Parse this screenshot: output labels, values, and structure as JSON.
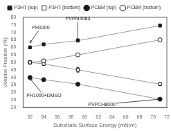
{
  "chart_data": {
    "type": "line",
    "xlabel": "Substrate Surface Energy (mN/m)",
    "ylabel": "Volume Fraction (%)",
    "xlim": [
      51,
      72
    ],
    "ylim": [
      20,
      80
    ],
    "xticks": [
      52,
      54,
      56,
      58,
      60,
      62,
      64,
      66,
      68,
      70,
      72
    ],
    "yticks": [
      20,
      25,
      30,
      35,
      40,
      45,
      50,
      55,
      60,
      65,
      70,
      75,
      80
    ],
    "grid": false,
    "legend": "top",
    "series": [
      {
        "name": "P3HT (top)",
        "color": "#1a1a1a",
        "marker": "square",
        "x": [
          52.0,
          54.0,
          59.0,
          71.0
        ],
        "values": [
          60.0,
          62.0,
          64.5,
          74.5
        ],
        "errors": [
          0.5,
          0.5,
          0.5,
          0.8
        ]
      },
      {
        "name": "P3HT (bottom)",
        "color": "#1a1a1a",
        "marker": "square-open",
        "x": [
          52.0,
          54.0,
          59.0,
          71.0
        ],
        "values": [
          50.0,
          49.0,
          45.0,
          35.5
        ],
        "errors": [
          1.0,
          1.0,
          1.5,
          1.0
        ]
      },
      {
        "name": "PCBM (top)",
        "color": "#1a1a1a",
        "marker": "circle",
        "x": [
          52.0,
          54.0,
          59.0,
          71.0
        ],
        "values": [
          40.0,
          38.5,
          35.5,
          25.5
        ],
        "errors": [
          0.8,
          0.5,
          0.5,
          0.5
        ]
      },
      {
        "name": "PCBM (bottom)",
        "color": "#1a1a1a",
        "marker": "circle-open",
        "x": [
          52.0,
          54.0,
          59.0,
          71.0
        ],
        "values": [
          50.0,
          51.0,
          55.0,
          65.0
        ],
        "errors": [
          1.0,
          1.0,
          0.5,
          0.8
        ]
      }
    ],
    "annotations": [
      {
        "text": "PH1000",
        "xy": [
          52.0,
          63.0
        ],
        "xytext": [
          52.3,
          71.5
        ]
      },
      {
        "text": "PVPAI4083",
        "xy": [
          59.0,
          64.5
        ],
        "xytext": [
          57.2,
          77.5
        ]
      },
      {
        "text": "PH1000+DMSO",
        "xy": [
          52.0,
          39.2
        ],
        "xytext": [
          51.5,
          29.5
        ]
      },
      {
        "text": "PVPCH8000",
        "xy": [
          71.0,
          25.5
        ],
        "xytext": [
          60.5,
          23.5
        ]
      }
    ]
  }
}
